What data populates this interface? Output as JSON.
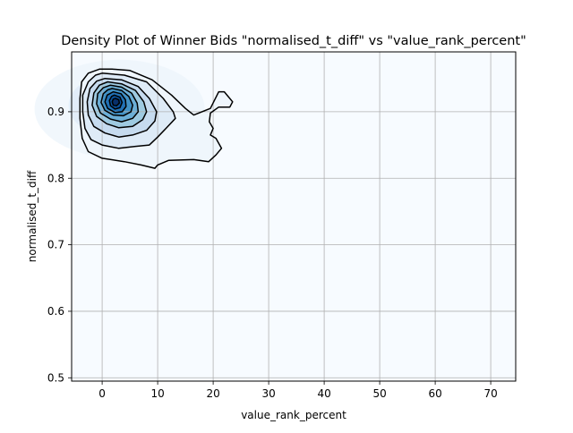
{
  "chart_data": {
    "type": "density",
    "title": "Density Plot of Winner Bids \"normalised_t_diff\" vs \"value_rank_percent\"",
    "xlabel": "value_rank_percent",
    "ylabel": "normalised_t_diff",
    "xlim": [
      -5.5,
      74.5
    ],
    "ylim": [
      0.495,
      0.99
    ],
    "xticks": [
      0,
      10,
      20,
      30,
      40,
      50,
      60,
      70
    ],
    "yticks": [
      0.5,
      0.6,
      0.7,
      0.8,
      0.9
    ],
    "grid": true,
    "colormap": "Blues",
    "peak": {
      "x": 2.5,
      "y": 0.915
    },
    "contours": [
      {
        "level": 1,
        "points": [
          [
            1.8,
            0.964
          ],
          [
            5,
            0.962
          ],
          [
            9,
            0.948
          ],
          [
            12.5,
            0.925
          ],
          [
            15,
            0.905
          ],
          [
            16.5,
            0.895
          ],
          [
            19.5,
            0.905
          ],
          [
            21,
            0.93
          ],
          [
            22,
            0.93
          ],
          [
            23.5,
            0.915
          ],
          [
            23,
            0.907
          ],
          [
            21,
            0.907
          ],
          [
            19.5,
            0.898
          ],
          [
            19.3,
            0.885
          ],
          [
            20,
            0.875
          ],
          [
            19.5,
            0.865
          ],
          [
            20.5,
            0.86
          ],
          [
            21.5,
            0.845
          ],
          [
            20.5,
            0.835
          ],
          [
            19.2,
            0.825
          ],
          [
            16.5,
            0.828
          ],
          [
            12,
            0.827
          ],
          [
            10,
            0.82
          ],
          [
            9.5,
            0.815
          ],
          [
            7,
            0.82
          ],
          [
            4,
            0.825
          ],
          [
            0,
            0.83
          ],
          [
            -2.5,
            0.84
          ],
          [
            -3.6,
            0.86
          ],
          [
            -4,
            0.89
          ],
          [
            -4,
            0.92
          ],
          [
            -3.7,
            0.945
          ],
          [
            -2.5,
            0.958
          ],
          [
            -0.5,
            0.964
          ]
        ]
      },
      {
        "level": 2,
        "points": [
          [
            0,
            0.958
          ],
          [
            4,
            0.955
          ],
          [
            8,
            0.945
          ],
          [
            11,
            0.92
          ],
          [
            12.8,
            0.9
          ],
          [
            13.2,
            0.89
          ],
          [
            11.5,
            0.875
          ],
          [
            10,
            0.862
          ],
          [
            8.5,
            0.85
          ],
          [
            6,
            0.848
          ],
          [
            3,
            0.845
          ],
          [
            0,
            0.85
          ],
          [
            -2,
            0.858
          ],
          [
            -3.1,
            0.875
          ],
          [
            -3.5,
            0.9
          ],
          [
            -3.5,
            0.925
          ],
          [
            -2.5,
            0.945
          ],
          [
            -1.2,
            0.955
          ]
        ]
      },
      {
        "level": 3,
        "points": [
          [
            0.5,
            0.95
          ],
          [
            3.5,
            0.948
          ],
          [
            6.5,
            0.938
          ],
          [
            8.5,
            0.92
          ],
          [
            9.8,
            0.9
          ],
          [
            9.5,
            0.886
          ],
          [
            8,
            0.872
          ],
          [
            5.5,
            0.865
          ],
          [
            3,
            0.862
          ],
          [
            0.5,
            0.868
          ],
          [
            -1.5,
            0.878
          ],
          [
            -2.5,
            0.895
          ],
          [
            -2.7,
            0.915
          ],
          [
            -2.2,
            0.935
          ],
          [
            -1,
            0.946
          ]
        ]
      },
      {
        "level": 4,
        "points": [
          [
            1,
            0.945
          ],
          [
            3.5,
            0.942
          ],
          [
            6,
            0.932
          ],
          [
            7.5,
            0.915
          ],
          [
            8,
            0.9
          ],
          [
            7.3,
            0.888
          ],
          [
            5.5,
            0.878
          ],
          [
            3,
            0.876
          ],
          [
            0.8,
            0.882
          ],
          [
            -1,
            0.893
          ],
          [
            -1.8,
            0.91
          ],
          [
            -1.5,
            0.928
          ],
          [
            -0.5,
            0.94
          ]
        ]
      },
      {
        "level": 5,
        "points": [
          [
            1.5,
            0.94
          ],
          [
            3.5,
            0.937
          ],
          [
            5.3,
            0.928
          ],
          [
            6.3,
            0.913
          ],
          [
            6.5,
            0.9
          ],
          [
            5.5,
            0.89
          ],
          [
            3.5,
            0.885
          ],
          [
            1.5,
            0.889
          ],
          [
            -0.3,
            0.898
          ],
          [
            -1,
            0.912
          ],
          [
            -0.8,
            0.927
          ],
          [
            0.2,
            0.936
          ]
        ]
      },
      {
        "level": 6,
        "points": [
          [
            1.8,
            0.935
          ],
          [
            3.5,
            0.932
          ],
          [
            4.8,
            0.923
          ],
          [
            5.5,
            0.91
          ],
          [
            5.2,
            0.9
          ],
          [
            3.8,
            0.894
          ],
          [
            2,
            0.895
          ],
          [
            0.5,
            0.902
          ],
          [
            -0.2,
            0.914
          ],
          [
            0.2,
            0.927
          ],
          [
            1,
            0.933
          ]
        ]
      },
      {
        "level": 7,
        "points": [
          [
            2,
            0.93
          ],
          [
            3.4,
            0.927
          ],
          [
            4.2,
            0.918
          ],
          [
            4.3,
            0.908
          ],
          [
            3.6,
            0.9
          ],
          [
            2.3,
            0.899
          ],
          [
            1,
            0.905
          ],
          [
            0.5,
            0.915
          ],
          [
            0.9,
            0.925
          ]
        ]
      },
      {
        "level": 8,
        "points": [
          [
            2.2,
            0.925
          ],
          [
            3.2,
            0.922
          ],
          [
            3.6,
            0.914
          ],
          [
            3.2,
            0.906
          ],
          [
            2.3,
            0.904
          ],
          [
            1.5,
            0.909
          ],
          [
            1.3,
            0.917
          ],
          [
            1.7,
            0.923
          ]
        ]
      },
      {
        "level": 9,
        "points": [
          [
            2.4,
            0.92
          ],
          [
            3,
            0.918
          ],
          [
            3.1,
            0.913
          ],
          [
            2.6,
            0.909
          ],
          [
            2,
            0.91
          ],
          [
            1.8,
            0.915
          ],
          [
            2,
            0.919
          ]
        ]
      }
    ]
  }
}
